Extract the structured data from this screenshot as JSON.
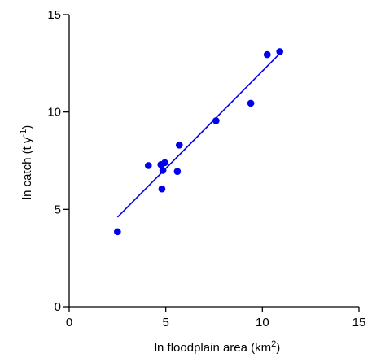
{
  "chart_data": {
    "type": "scatter",
    "xlabel": "ln floodplain area (km",
    "xlabel_sup": "2",
    "xlabel_end": ")",
    "ylabel": "ln catch (t y",
    "ylabel_sup": "-1",
    "ylabel_end": ")",
    "xlim": [
      0,
      15
    ],
    "ylim": [
      0,
      15
    ],
    "xticks": [
      0,
      5,
      10,
      15
    ],
    "yticks": [
      0,
      5,
      10,
      15
    ],
    "grid": false,
    "colors": {
      "points": "#0000ee",
      "line": "#0000ee",
      "axes": "#000000"
    },
    "points": [
      {
        "x": 2.5,
        "y": 3.85
      },
      {
        "x": 4.1,
        "y": 7.25
      },
      {
        "x": 4.75,
        "y": 7.3
      },
      {
        "x": 4.85,
        "y": 7.0
      },
      {
        "x": 4.95,
        "y": 7.4
      },
      {
        "x": 4.8,
        "y": 6.05
      },
      {
        "x": 5.6,
        "y": 6.95
      },
      {
        "x": 5.7,
        "y": 8.3
      },
      {
        "x": 7.6,
        "y": 9.55
      },
      {
        "x": 9.4,
        "y": 10.45
      },
      {
        "x": 10.25,
        "y": 12.95
      },
      {
        "x": 10.9,
        "y": 13.1
      }
    ],
    "fit_line": {
      "x": [
        2.5,
        10.9
      ],
      "y": [
        4.6,
        13.0
      ]
    }
  }
}
